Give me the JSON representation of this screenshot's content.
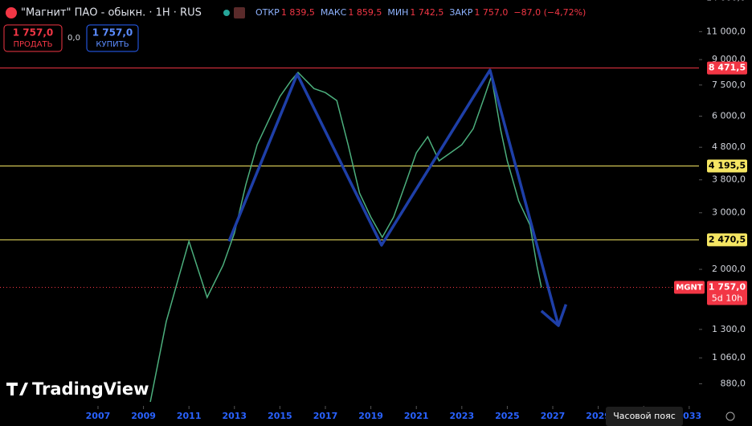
{
  "header": {
    "instrument": "\"Магнит\" ПАО - обыкн. · 1H · RUS",
    "ohlc": [
      {
        "label": "ОТКР",
        "value": "1 839,5"
      },
      {
        "label": "МАКС",
        "value": "1 859,5"
      },
      {
        "label": "МИН",
        "value": "1 742,5"
      },
      {
        "label": "ЗАКР",
        "value": "1 757,0"
      }
    ],
    "change": "−87,0 (−4,72%)"
  },
  "trade_panel": {
    "sell_price": "1 757,0",
    "sell_label": "ПРОДАТЬ",
    "spread": "0,0",
    "buy_price": "1 757,0",
    "buy_label": "КУПИТЬ"
  },
  "branding": "TradingView",
  "timezone_button": "Часовой пояс",
  "chart_data": {
    "type": "line",
    "log": true,
    "grid": false,
    "xlim": [
      2002.69,
      2033.43
    ],
    "xticks": [
      2007,
      2009,
      2011,
      2013,
      2015,
      2017,
      2019,
      2021,
      2023,
      2025,
      2027,
      2029,
      2031,
      2033
    ],
    "ylim": [
      751,
      13800
    ],
    "yticks": [
      {
        "value": 880,
        "label": "880,0"
      },
      {
        "value": 1060,
        "label": "1 060,0"
      },
      {
        "value": 1300,
        "label": "1 300,0"
      },
      {
        "value": 2000,
        "label": "2 000,0"
      },
      {
        "value": 3000,
        "label": "3 000,0"
      },
      {
        "value": 3800,
        "label": "3 800,0"
      },
      {
        "value": 4800,
        "label": "4 800,0"
      },
      {
        "value": 6000,
        "label": "6 000,0"
      },
      {
        "value": 7500,
        "label": "7 500,0"
      },
      {
        "value": 9000,
        "label": "9 000,0"
      },
      {
        "value": 11000,
        "label": "11 000,0"
      },
      {
        "value": 14000,
        "label": "14 000,0"
      }
    ],
    "series": [
      {
        "color": "#4caf7d",
        "x": [
          2009.3,
          2010.0,
          2010.5,
          2011.0,
          2011.8,
          2012.5,
          2013.0,
          2013.5,
          2014.0,
          2014.5,
          2015.0,
          2015.5,
          2015.8,
          2016.5,
          2017.0,
          2017.5,
          2018.0,
          2018.5,
          2019.0,
          2019.5,
          2020.0,
          2020.5,
          2021.0,
          2021.5,
          2022.0,
          2022.5,
          2023.0,
          2023.5,
          2024.0,
          2024.3,
          2024.7,
          2025.0,
          2025.5,
          2026.0,
          2026.3,
          2026.5
        ],
        "values": [
          773,
          1375,
          1834,
          2445,
          1635,
          2058,
          2592,
          3662,
          4886,
          5808,
          6905,
          7749,
          8210,
          7313,
          7105,
          6708,
          4886,
          3456,
          2908,
          2517,
          2908,
          3662,
          4612,
          5176,
          4354,
          4612,
          4886,
          5481,
          6905,
          7975,
          5481,
          4354,
          3264,
          2746,
          2058,
          1757
        ]
      }
    ],
    "drawings": [
      {
        "color": "#1e3fa8",
        "x": [
          2012.76,
          2015.76,
          2019.47,
          2024.24,
          2027.25
        ],
        "values": [
          2445,
          8113,
          2378,
          8350,
          1336
        ]
      }
    ],
    "levels": [
      {
        "value": 8471.5,
        "label": "8 471,5",
        "color": "#f23645"
      },
      {
        "value": 4195.5,
        "label": "4 195,5",
        "color": "#f5e663"
      },
      {
        "value": 2470.5,
        "label": "2 470,5",
        "color": "#f5e663"
      }
    ],
    "last_price": {
      "symbol": "MGNT",
      "value": 1757,
      "label": "1 757,0",
      "countdown": "5d 10h",
      "color": "#f23645"
    }
  }
}
